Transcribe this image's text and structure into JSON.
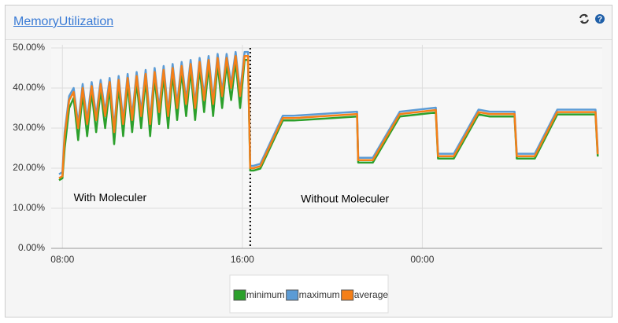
{
  "chart_data": {
    "type": "line",
    "title": "MemoryUtilization",
    "x": [
      7.85,
      8.0,
      8.1,
      8.3,
      8.5,
      8.7,
      8.9,
      9.1,
      9.3,
      9.5,
      9.7,
      9.9,
      10.1,
      10.3,
      10.5,
      10.7,
      10.9,
      11.1,
      11.3,
      11.5,
      11.7,
      11.9,
      12.1,
      12.3,
      12.5,
      12.7,
      12.9,
      13.1,
      13.3,
      13.5,
      13.7,
      13.9,
      14.1,
      14.3,
      14.5,
      14.7,
      14.9,
      15.1,
      15.3,
      15.5,
      15.7,
      15.9,
      16.1,
      16.25,
      16.35,
      16.5,
      16.8,
      17.8,
      18.3,
      21.1,
      21.15,
      21.8,
      23.0,
      24.6,
      24.7,
      25.4,
      26.5,
      27.0,
      28.1,
      28.2,
      29.0,
      30.0,
      31.7,
      31.8
    ],
    "series": [
      {
        "name": "minimum",
        "color": "#2ca02c",
        "values": [
          17,
          17.5,
          25,
          35,
          37.5,
          27,
          38.5,
          28,
          39,
          29,
          39.5,
          30,
          40,
          26,
          40.5,
          28,
          41,
          29,
          41.5,
          30,
          42,
          28,
          42.5,
          31,
          43,
          30,
          43.5,
          32,
          44,
          33,
          44.5,
          32,
          45,
          34,
          45.5,
          33,
          46,
          35,
          46,
          37,
          46.5,
          35,
          47,
          47,
          19.4,
          19.4,
          19.9,
          31.9,
          31.9,
          32.9,
          21.4,
          21.4,
          32.9,
          33.9,
          22.4,
          22.4,
          33.4,
          32.9,
          32.9,
          22.4,
          22.4,
          33.4,
          33.4,
          22.9
        ]
      },
      {
        "name": "maximum",
        "color": "#5b9bd5",
        "values": [
          18.5,
          19,
          29,
          38,
          40,
          31,
          41,
          32,
          41.5,
          33,
          42,
          34,
          42.5,
          30,
          43,
          32,
          43.5,
          33,
          44,
          34,
          44.5,
          32,
          45,
          35,
          45.5,
          34,
          46,
          36,
          46.5,
          37,
          47,
          36,
          47.5,
          38,
          48,
          37,
          48.5,
          39,
          48.5,
          41,
          49,
          39,
          49,
          49,
          20.6,
          20.6,
          21.1,
          33.1,
          33.1,
          34.1,
          22.6,
          22.6,
          34.1,
          35.1,
          23.6,
          23.6,
          34.6,
          34.1,
          34.1,
          23.6,
          23.6,
          34.6,
          34.6,
          24.1
        ]
      },
      {
        "name": "average",
        "color": "#f57f17",
        "values": [
          17.5,
          18,
          28,
          37,
          39,
          30,
          40,
          31,
          40.5,
          32,
          41,
          33,
          41.5,
          29,
          42,
          31,
          42.5,
          32,
          43,
          33,
          43.5,
          31,
          44,
          34,
          44.5,
          33,
          45,
          35,
          45.5,
          36,
          46,
          35,
          46.5,
          37,
          47,
          36,
          47.5,
          38,
          47.5,
          40,
          48,
          38,
          48,
          48,
          20,
          20,
          20.5,
          32.5,
          32.5,
          33.5,
          22,
          22,
          33.5,
          34.5,
          23,
          23,
          34,
          33.5,
          33.5,
          23,
          23,
          34,
          34,
          23.5
        ]
      }
    ],
    "xlim": [
      7.5,
      32
    ],
    "xticks": [
      {
        "value": 8,
        "label": "08:00"
      },
      {
        "value": 16,
        "label": "16:00"
      },
      {
        "value": 24,
        "label": "00:00"
      }
    ],
    "ylim": [
      0,
      50
    ],
    "yticks": [
      {
        "value": 0,
        "label": "0.00%"
      },
      {
        "value": 10,
        "label": "10.00%"
      },
      {
        "value": 20,
        "label": "20.00%"
      },
      {
        "value": 30,
        "label": "30.00%"
      },
      {
        "value": 40,
        "label": "40.00%"
      },
      {
        "value": 50,
        "label": "50.00%"
      }
    ],
    "grid": true,
    "vline": 16.35,
    "annotations": [
      {
        "text": "With Moleculer",
        "x": 8.5,
        "y": 12.5
      },
      {
        "text": "Without Moleculer",
        "x": 18.6,
        "y": 12.2
      }
    ],
    "legend": "bottom"
  }
}
